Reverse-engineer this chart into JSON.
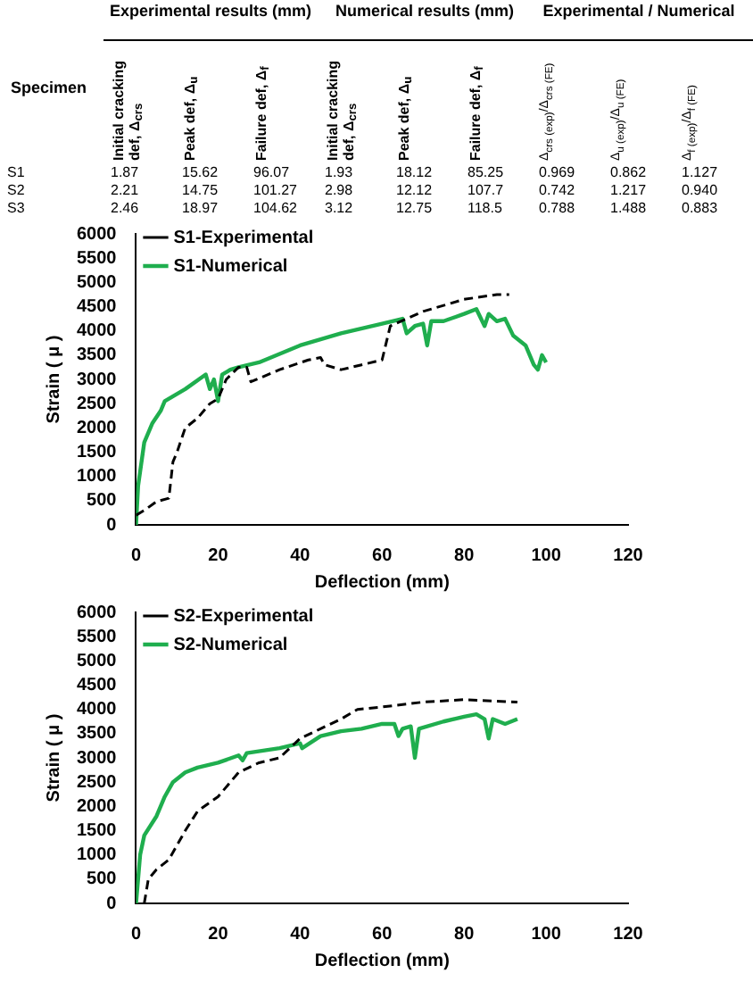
{
  "chart_data": [
    {
      "type": "other",
      "ylabel": "Specimen",
      "annotations": [
        "Experimental results (mm)",
        "Numerical results (mm)",
        "Experimental / Numerical"
      ],
      "categories": [
        "Initial cracking def, Δ$_{crs}$",
        "Peak def, Δ$_{u}$",
        "Failure def, Δ$_{f}$",
        "Initial cracking def, Δ$_{crs}$",
        "Peak def, Δ$_{u}$",
        "Failure def, Δ$_{f}$",
        "Δ$_{crs (exp)}$/Δ$_{crs (FE)}$",
        "Δ$_{u (exp)}$/Δ$_{u (FE)}$",
        "Δ$_{f (exp)}$/Δ$_{f (FE)}$"
      ],
      "y_categories": [
        "S1",
        "S2",
        "S3"
      ],
      "cell_labels": [
        [
          "1.87",
          "15.62",
          "96.07",
          "1.93",
          "18.12",
          "85.25",
          "0.969",
          "0.862",
          "1.127"
        ],
        [
          "2.21",
          "14.75",
          "101.27",
          "2.98",
          "12.12",
          "107.7",
          "0.742",
          "1.217",
          "0.940"
        ],
        [
          "2.46",
          "18.97",
          "104.62",
          "3.12",
          "12.75",
          "118.5",
          "0.788",
          "1.488",
          "0.883"
        ]
      ]
    },
    {
      "type": "line",
      "xlabel": "Deflection (mm)",
      "ylabel": "Strain ( μ )",
      "xlim": [
        0,
        120
      ],
      "xticks": [
        0,
        20,
        40,
        60,
        80,
        100,
        120
      ],
      "ylim": [
        0,
        6000
      ],
      "yticks": [
        0,
        500,
        1000,
        1500,
        2000,
        2500,
        3000,
        3500,
        4000,
        4500,
        5000,
        5500,
        6000
      ],
      "grid": false,
      "legend": "top left",
      "series": [
        {
          "name": "S1-Experimental",
          "color": "#000000",
          "line_style": "dashed",
          "x": [
            0,
            2,
            5,
            8,
            9,
            10,
            12,
            15,
            18,
            20,
            22,
            25,
            27,
            28,
            35,
            42,
            45,
            46,
            50,
            55,
            60,
            62,
            70,
            80,
            88,
            91
          ],
          "values": [
            200,
            300,
            480,
            550,
            1300,
            1500,
            2000,
            2200,
            2500,
            2600,
            3000,
            3250,
            3250,
            2950,
            3200,
            3400,
            3450,
            3300,
            3200,
            3300,
            3400,
            4100,
            4400,
            4650,
            4750,
            4750
          ]
        },
        {
          "name": "S1-Numerical",
          "color": "#1fae4e",
          "line_style": "solid",
          "x": [
            0,
            0.5,
            2,
            4,
            6,
            7,
            12,
            17,
            18,
            19,
            20,
            21,
            23,
            25,
            30,
            40,
            50,
            60,
            65,
            66,
            68,
            70,
            71,
            72,
            75,
            80,
            83,
            85,
            86,
            88,
            90,
            92,
            95,
            97,
            98,
            99,
            100
          ],
          "values": [
            0,
            800,
            1700,
            2100,
            2350,
            2550,
            2800,
            3100,
            2800,
            3000,
            2550,
            3100,
            3200,
            3250,
            3350,
            3700,
            3950,
            4150,
            4250,
            3950,
            4100,
            4150,
            3700,
            4200,
            4200,
            4350,
            4450,
            4100,
            4350,
            4200,
            4250,
            3900,
            3700,
            3300,
            3200,
            3500,
            3350
          ]
        }
      ]
    },
    {
      "type": "line",
      "xlabel": "Deflection (mm)",
      "ylabel": "Strain ( μ )",
      "xlim": [
        0,
        120
      ],
      "xticks": [
        0,
        20,
        40,
        60,
        80,
        100,
        120
      ],
      "ylim": [
        0,
        6000
      ],
      "yticks": [
        0,
        500,
        1000,
        1500,
        2000,
        2500,
        3000,
        3500,
        4000,
        4500,
        5000,
        5500,
        6000
      ],
      "grid": false,
      "legend": "top left",
      "series": [
        {
          "name": "S2-Experimental",
          "color": "#000000",
          "line_style": "dashed",
          "x": [
            2,
            3,
            5,
            8,
            12,
            15,
            20,
            25,
            30,
            35,
            40,
            45,
            50,
            54,
            60,
            70,
            80,
            93
          ],
          "values": [
            0,
            500,
            700,
            900,
            1500,
            1900,
            2200,
            2700,
            2900,
            3000,
            3400,
            3600,
            3800,
            4000,
            4050,
            4150,
            4200,
            4150
          ]
        },
        {
          "name": "S2-Numerical",
          "color": "#1fae4e",
          "line_style": "solid",
          "x": [
            0,
            1,
            2,
            5,
            7,
            9,
            12,
            15,
            20,
            25,
            26,
            27,
            35,
            40,
            40.5,
            45,
            50,
            55,
            60,
            63,
            64,
            65,
            67,
            68,
            69,
            75,
            80,
            83,
            85,
            86,
            87,
            90,
            93
          ],
          "values": [
            0,
            1000,
            1400,
            1800,
            2200,
            2500,
            2700,
            2800,
            2900,
            3050,
            2950,
            3100,
            3200,
            3300,
            3200,
            3450,
            3550,
            3600,
            3700,
            3700,
            3450,
            3600,
            3650,
            3000,
            3600,
            3750,
            3850,
            3900,
            3800,
            3400,
            3800,
            3700,
            3800
          ]
        }
      ]
    }
  ]
}
